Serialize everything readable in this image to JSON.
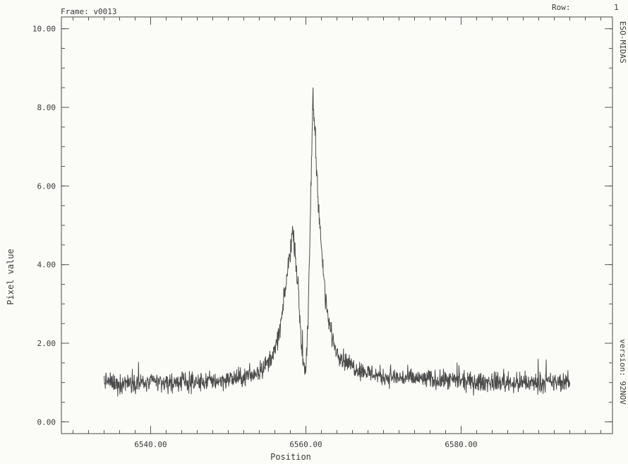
{
  "header": {
    "frame_label": "Frame:  v0013",
    "row_label": "Row:",
    "row_value": "1"
  },
  "side_text": {
    "top_right": "ESO-MIDAS",
    "bottom_right": "version: 92NOV"
  },
  "chart_data": {
    "type": "line",
    "title": "",
    "xlabel": "Position",
    "ylabel": "Pixel value",
    "xlim": [
      6528.5,
      6599.5
    ],
    "ylim": [
      -0.3,
      10.3
    ],
    "x_ticks": [
      6540,
      6560,
      6580
    ],
    "x_tick_labels": [
      "6540.00",
      "6560.00",
      "6580.00"
    ],
    "y_ticks": [
      0,
      2,
      4,
      6,
      8,
      10
    ],
    "y_tick_labels": [
      "0.00",
      "2.00",
      "4.00",
      "6.00",
      "8.00",
      "10.00"
    ],
    "x_minor_step": 2,
    "y_minor_step": 0.5,
    "grid": false,
    "line_color": "#4b4b4b",
    "series": [
      {
        "x": [
          6534.0,
          6535.0,
          6536.0,
          6537.0,
          6538.0,
          6539.0,
          6540.0,
          6541.0,
          6542.0,
          6543.0,
          6544.0,
          6545.0,
          6546.0,
          6547.0,
          6548.0,
          6549.0,
          6550.0,
          6551.0,
          6552.0,
          6553.0,
          6554.0,
          6555.0,
          6556.0,
          6556.5,
          6557.0,
          6557.5,
          6558.0,
          6558.3,
          6558.6,
          6559.0,
          6559.3,
          6559.6,
          6560.0,
          6560.3,
          6560.6,
          6560.9,
          6561.2,
          6561.5,
          6562.0,
          6562.5,
          6563.0,
          6563.5,
          6564.0,
          6565.0,
          6566.0,
          6567.0,
          6568.0,
          6569.0,
          6570.0,
          6572.0,
          6574.0,
          6576.0,
          6578.0,
          6580.0,
          6582.0,
          6584.0,
          6586.0,
          6588.0,
          6590.0,
          6592.0,
          6594.0
        ],
        "y": [
          1.05,
          1.0,
          0.95,
          1.02,
          1.0,
          0.98,
          1.0,
          1.02,
          0.97,
          1.0,
          1.03,
          1.0,
          1.0,
          1.02,
          1.05,
          1.05,
          1.08,
          1.1,
          1.13,
          1.18,
          1.3,
          1.48,
          1.8,
          2.2,
          2.8,
          3.6,
          4.4,
          4.85,
          4.4,
          3.4,
          2.3,
          1.6,
          1.35,
          2.6,
          5.5,
          8.3,
          7.3,
          6.0,
          4.4,
          3.2,
          2.5,
          2.05,
          1.8,
          1.55,
          1.42,
          1.32,
          1.25,
          1.2,
          1.15,
          1.12,
          1.1,
          1.08,
          1.05,
          1.03,
          1.0,
          1.02,
          1.0,
          0.98,
          1.0,
          1.0,
          1.02
        ],
        "noise_amplitude": 0.22
      }
    ]
  }
}
